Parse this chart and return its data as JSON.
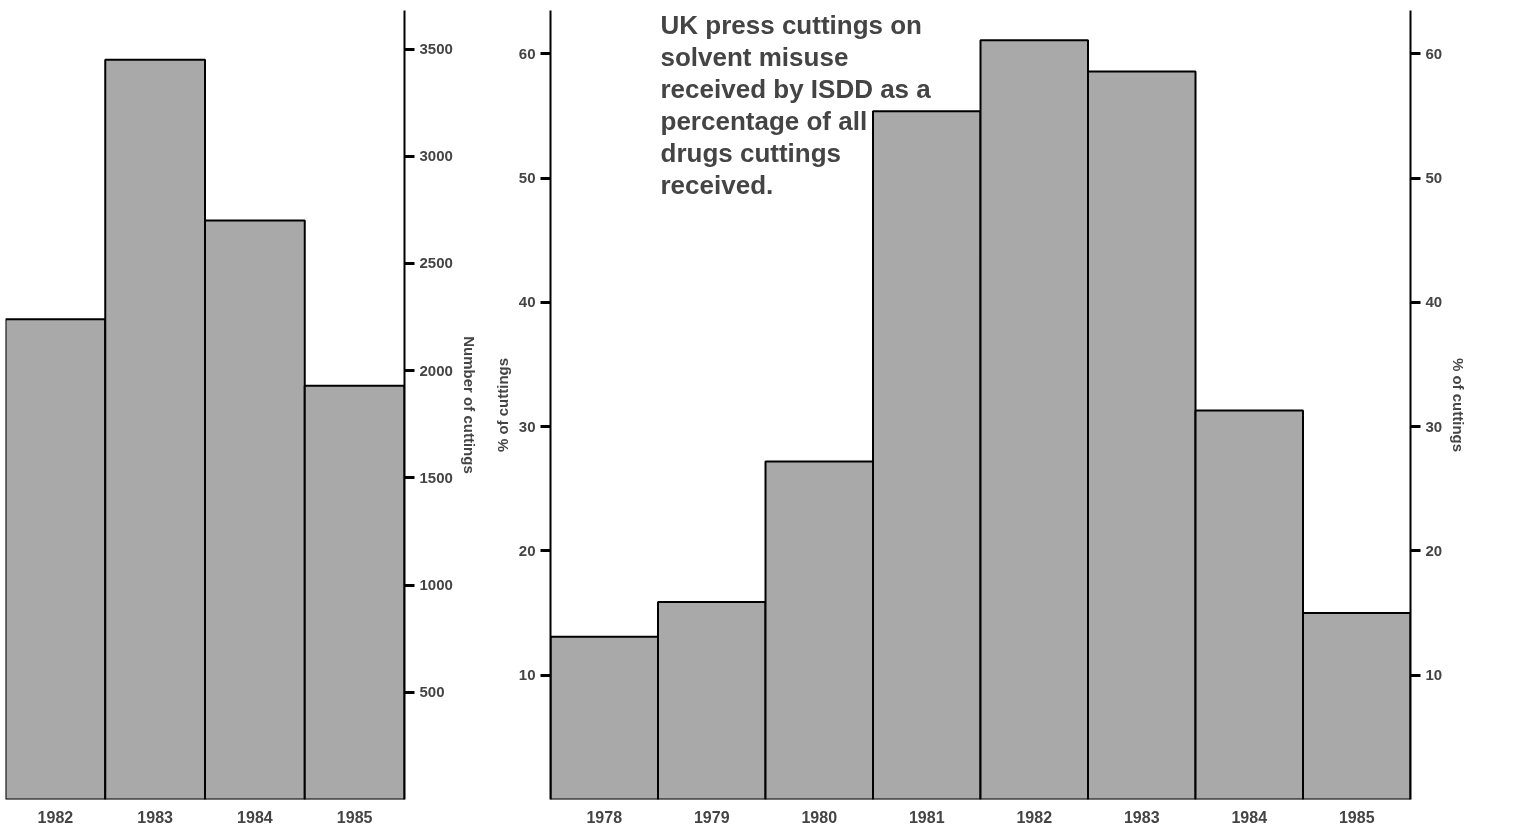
{
  "chart_data": [
    {
      "type": "bar",
      "categories": [
        "1982",
        "1983",
        "1984",
        "1985"
      ],
      "y2label": "Number of cuttings",
      "y2lim": [
        0,
        3680
      ],
      "y2ticks": [
        500,
        1000,
        1500,
        2000,
        2500,
        3000,
        3500
      ],
      "grid": false,
      "series": [
        {
          "color": "#a9a9a9",
          "axis": "y2",
          "values": [
            2240,
            3450,
            2700,
            1930
          ]
        }
      ]
    },
    {
      "type": "bar",
      "title": "UK press cuttings on solvent misuse received by ISDD as a percentage of all drugs cuttings received.",
      "categories": [
        "1978",
        "1979",
        "1980",
        "1981",
        "1982",
        "1983",
        "1984",
        "1985"
      ],
      "ylabel": "% of cuttings",
      "ylim": [
        0,
        63.5
      ],
      "yticks": [
        10,
        20,
        30,
        40,
        50,
        60
      ],
      "y2label": "% of cuttings",
      "y2lim": [
        0,
        63.5
      ],
      "y2ticks": [
        10,
        20,
        30,
        40,
        50,
        60
      ],
      "grid": false,
      "series": [
        {
          "color": "#a9a9a9",
          "values": [
            13.1,
            15.9,
            27.2,
            55.4,
            61.1,
            58.6,
            31.3,
            15.0
          ]
        }
      ]
    }
  ]
}
